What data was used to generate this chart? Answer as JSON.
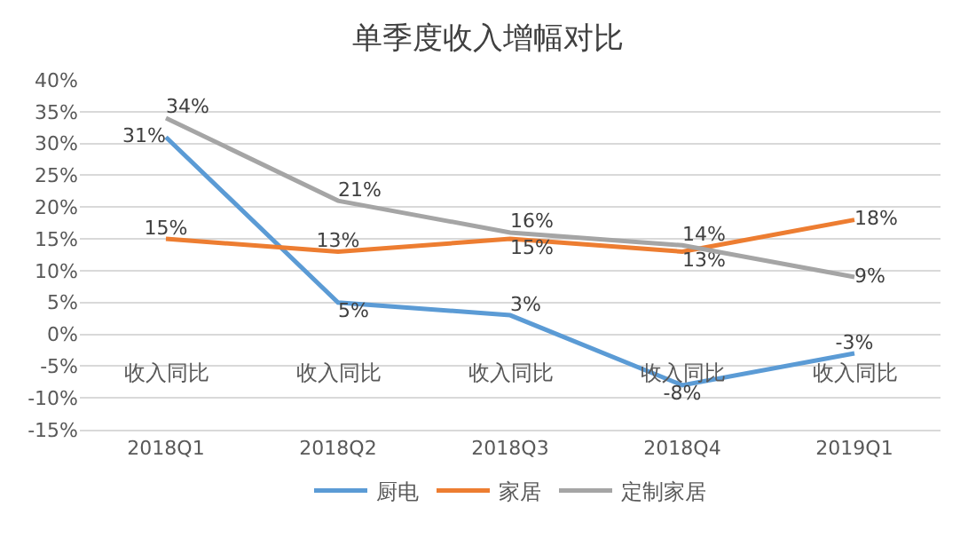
{
  "chart_data": {
    "type": "line",
    "title": "单季度收入增幅对比",
    "categories": [
      "2018Q1",
      "2018Q2",
      "2018Q3",
      "2018Q4",
      "2019Q1"
    ],
    "annotations": [
      "收入同比",
      "收入同比",
      "收入同比",
      "收入同比",
      "收入同比"
    ],
    "series": [
      {
        "name": "厨电",
        "color": "#5b9bd5",
        "values": [
          31,
          5,
          3,
          -8,
          -3
        ],
        "value_labels": [
          "31%",
          "5%",
          "3%",
          "-8%",
          "-3%"
        ]
      },
      {
        "name": "家居",
        "color": "#ed7d31",
        "values": [
          15,
          13,
          15,
          13,
          18
        ],
        "value_labels": [
          "15%",
          "13%",
          "15%",
          "13%",
          "18%"
        ]
      },
      {
        "name": "定制家居",
        "color": "#a5a5a5",
        "values": [
          34,
          21,
          16,
          14,
          9
        ],
        "value_labels": [
          "34%",
          "21%",
          "16%",
          "14%",
          "9%"
        ]
      }
    ],
    "ylim": [
      -15,
      40
    ],
    "yticks": [
      {
        "value": -15,
        "label": "-15%"
      },
      {
        "value": -10,
        "label": "-10%"
      },
      {
        "value": -5,
        "label": "-5%"
      },
      {
        "value": 0,
        "label": "0%"
      },
      {
        "value": 5,
        "label": "5%"
      },
      {
        "value": 10,
        "label": "10%"
      },
      {
        "value": 15,
        "label": "15%"
      },
      {
        "value": 20,
        "label": "20%"
      },
      {
        "value": 25,
        "label": "25%"
      },
      {
        "value": 30,
        "label": "30%"
      },
      {
        "value": 35,
        "label": "35%"
      },
      {
        "value": 40,
        "label": "40%"
      }
    ],
    "grid": "y",
    "legend": "bottom",
    "marker": "none",
    "line_style": "solid"
  }
}
